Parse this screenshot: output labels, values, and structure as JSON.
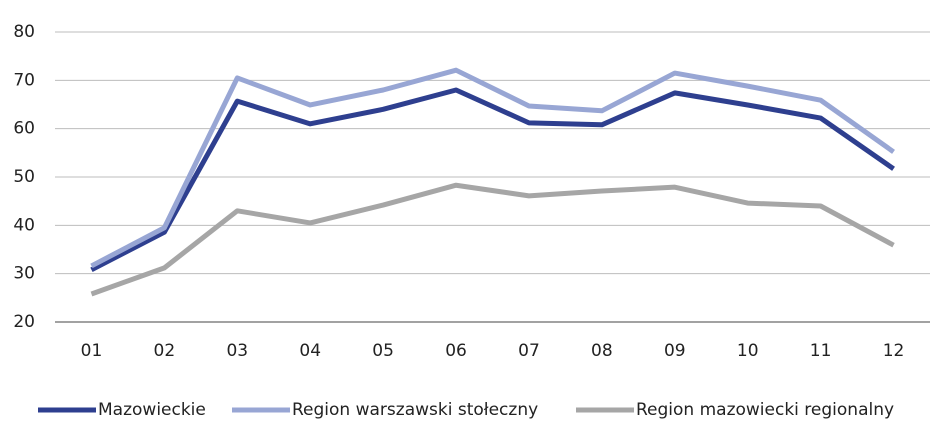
{
  "chart_data": {
    "type": "line",
    "categories": [
      "01",
      "02",
      "03",
      "04",
      "05",
      "06",
      "07",
      "08",
      "09",
      "10",
      "11",
      "12"
    ],
    "series": [
      {
        "name": "Mazowieckie",
        "color": "#2e3f8f",
        "values": [
          30.8,
          38.6,
          65.7,
          61,
          64,
          68,
          61.2,
          60.8,
          67.4,
          64.9,
          62.2,
          51.7
        ]
      },
      {
        "name": "Region warszawski stołeczny",
        "color": "#98a6d4",
        "values": [
          31.6,
          39.5,
          70.5,
          64.9,
          68,
          72.1,
          64.7,
          63.7,
          71.5,
          68.8,
          65.9,
          55.2
        ]
      },
      {
        "name": "Region mazowiecki regionalny",
        "color": "#a6a6a6",
        "values": [
          25.8,
          31.2,
          43,
          40.5,
          44.2,
          48.3,
          46.1,
          47.1,
          47.9,
          44.6,
          44,
          35.9
        ]
      }
    ],
    "ylim": [
      20,
      80
    ],
    "yticks": [
      20,
      30,
      40,
      50,
      60,
      70,
      80
    ],
    "grid": true,
    "legend": "bottom"
  }
}
